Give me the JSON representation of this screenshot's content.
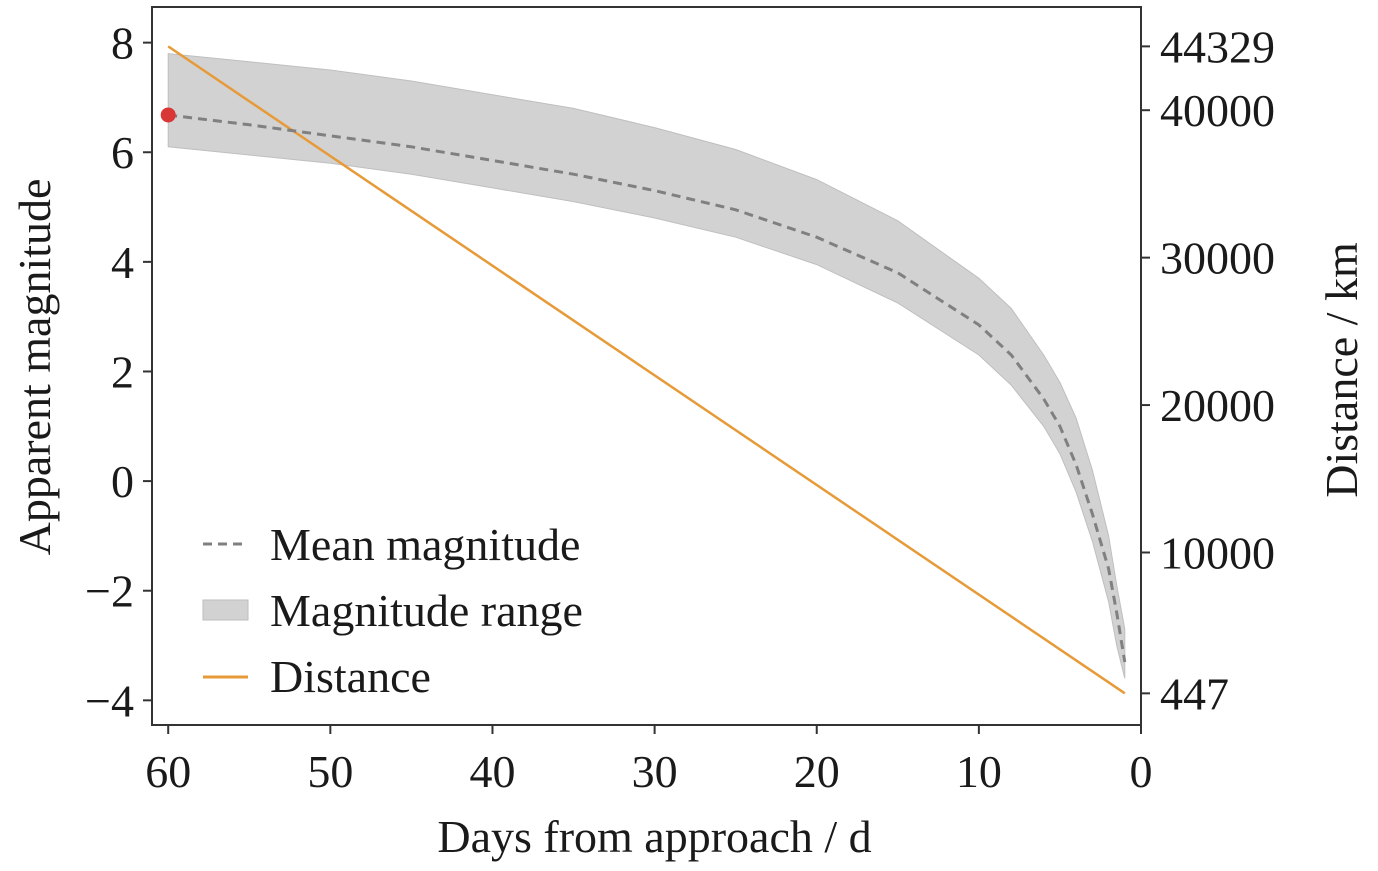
{
  "chart_data": {
    "type": "line",
    "xlabel": "Days from approach / d",
    "ylabel": "Apparent magnitude",
    "ylabel_right": "Distance / km",
    "xlim": [
      61,
      0
    ],
    "ylim": [
      -4.45,
      8.65
    ],
    "ylim_right": [
      -1700,
      47000
    ],
    "x_ticks": [
      60,
      50,
      40,
      30,
      20,
      10,
      0
    ],
    "x_tick_labels": [
      "60",
      "50",
      "40",
      "30",
      "20",
      "10",
      "0"
    ],
    "y_ticks": [
      8,
      6,
      4,
      2,
      0,
      -2,
      -4
    ],
    "y_tick_labels": [
      "8",
      "6",
      "4",
      "2",
      "0",
      "−2",
      "−4"
    ],
    "y_right_ticks": [
      44329,
      40000,
      30000,
      20000,
      10000,
      447
    ],
    "y_right_tick_labels": [
      "44329",
      "40000",
      "30000",
      "20000",
      "10000",
      "447"
    ],
    "legend_position": "lower-left",
    "legend": {
      "mean": "Mean magnitude",
      "range": "Magnitude range",
      "distance": "Distance"
    },
    "series": [
      {
        "name": "Mean magnitude",
        "axis": "left",
        "style": "dashed",
        "color": "#808080",
        "x": [
          60,
          55,
          50,
          45,
          40,
          35,
          30,
          25,
          20,
          15,
          10,
          8,
          6,
          5,
          4,
          3,
          2,
          1.5,
          1
        ],
        "y": [
          6.68,
          6.5,
          6.3,
          6.1,
          5.85,
          5.6,
          5.3,
          4.95,
          4.45,
          3.8,
          2.85,
          2.3,
          1.5,
          1.0,
          0.3,
          -0.6,
          -1.6,
          -2.4,
          -3.3
        ]
      },
      {
        "name": "Magnitude range",
        "axis": "left",
        "type": "area",
        "color": "#d2d2d2",
        "x": [
          60,
          55,
          50,
          45,
          40,
          35,
          30,
          25,
          20,
          15,
          10,
          8,
          6,
          5,
          4,
          3,
          2,
          1.5,
          1
        ],
        "upper": [
          7.8,
          7.65,
          7.5,
          7.3,
          7.05,
          6.8,
          6.45,
          6.05,
          5.5,
          4.75,
          3.7,
          3.15,
          2.3,
          1.8,
          1.15,
          0.2,
          -1.0,
          -1.9,
          -2.7
        ],
        "lower": [
          6.1,
          5.95,
          5.8,
          5.6,
          5.35,
          5.1,
          4.8,
          4.45,
          3.95,
          3.25,
          2.3,
          1.75,
          1.0,
          0.5,
          -0.2,
          -1.1,
          -2.2,
          -3.0,
          -3.6
        ]
      },
      {
        "name": "Distance",
        "axis": "right",
        "style": "solid",
        "color": "#e69a38",
        "x": [
          60,
          1
        ],
        "y": [
          44329,
          447
        ]
      }
    ],
    "annotations": [
      {
        "type": "point",
        "series": "Mean magnitude",
        "x": 60,
        "y": 6.68,
        "color": "#d93636"
      }
    ],
    "grid": false
  }
}
